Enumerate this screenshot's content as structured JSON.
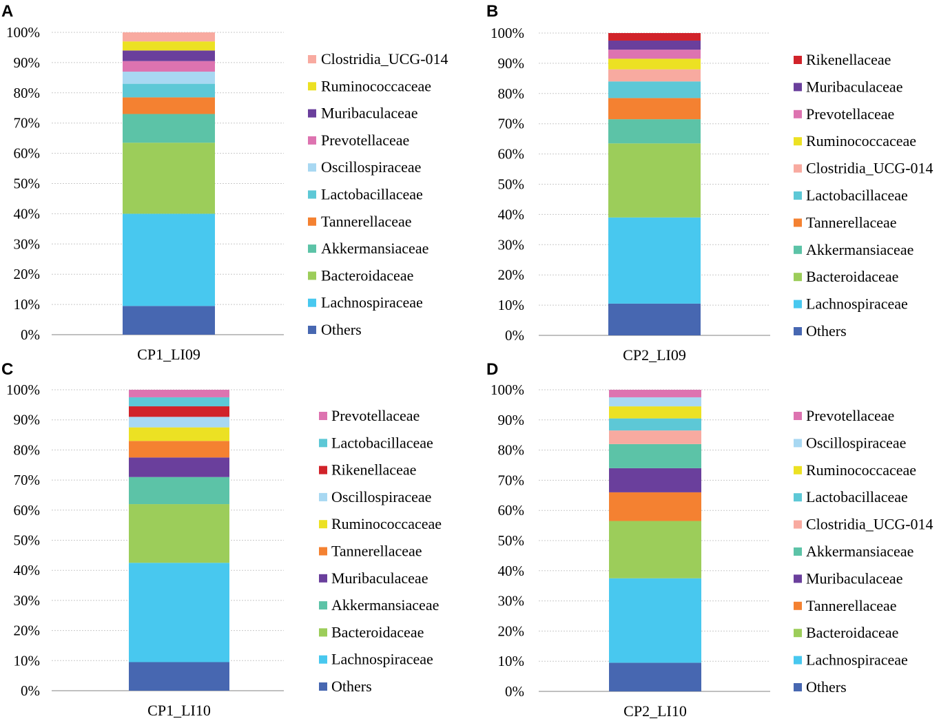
{
  "colors": {
    "Others": "#4767b1",
    "Lachnospiraceae": "#48c8ef",
    "Bacteroidaceae": "#9ccd5a",
    "Akkermansiaceae": "#5cc3a7",
    "Tannerellaceae": "#f48131",
    "Lactobacillaceae": "#5dc8d6",
    "Oscillospiraceae": "#a8d8f2",
    "Prevotellaceae": "#dd73b0",
    "Muribaculaceae": "#6a3f9c",
    "Ruminococcaceae": "#ece123",
    "Clostridia_UCG-014": "#f8aaa0",
    "Rikenellaceae": "#d1232a"
  },
  "chart_data": [
    {
      "panel": "A",
      "type": "bar",
      "stacked": true,
      "categories": [
        "CP1_LI09"
      ],
      "yticks": [
        "0%",
        "10%",
        "20%",
        "30%",
        "40%",
        "50%",
        "60%",
        "70%",
        "80%",
        "90%",
        "100%"
      ],
      "ylim": [
        0,
        100
      ],
      "series": [
        {
          "name": "Others",
          "values": [
            9.5
          ]
        },
        {
          "name": "Lachnospiraceae",
          "values": [
            30.5
          ]
        },
        {
          "name": "Bacteroidaceae",
          "values": [
            23.5
          ]
        },
        {
          "name": "Akkermansiaceae",
          "values": [
            9.5
          ]
        },
        {
          "name": "Tannerellaceae",
          "values": [
            5.5
          ]
        },
        {
          "name": "Lactobacillaceae",
          "values": [
            4.5
          ]
        },
        {
          "name": "Oscillospiraceae",
          "values": [
            4
          ]
        },
        {
          "name": "Prevotellaceae",
          "values": [
            3.5
          ]
        },
        {
          "name": "Muribaculaceae",
          "values": [
            3.5
          ]
        },
        {
          "name": "Ruminococcaceae",
          "values": [
            3
          ]
        },
        {
          "name": "Clostridia_UCG-014",
          "values": [
            3
          ]
        }
      ],
      "legend": [
        "Clostridia_UCG-014",
        "Ruminococcaceae",
        "Muribaculaceae",
        "Prevotellaceae",
        "Oscillospiraceae",
        "Lactobacillaceae",
        "Tannerellaceae",
        "Akkermansiaceae",
        "Bacteroidaceae",
        "Lachnospiraceae",
        "Others"
      ]
    },
    {
      "panel": "B",
      "type": "bar",
      "stacked": true,
      "categories": [
        "CP2_LI09"
      ],
      "yticks": [
        "0%",
        "10%",
        "20%",
        "30%",
        "40%",
        "50%",
        "60%",
        "70%",
        "80%",
        "90%",
        "100%"
      ],
      "ylim": [
        0,
        100
      ],
      "series": [
        {
          "name": "Others",
          "values": [
            10.5
          ]
        },
        {
          "name": "Lachnospiraceae",
          "values": [
            28.5
          ]
        },
        {
          "name": "Bacteroidaceae",
          "values": [
            24.5
          ]
        },
        {
          "name": "Akkermansiaceae",
          "values": [
            8
          ]
        },
        {
          "name": "Tannerellaceae",
          "values": [
            7
          ]
        },
        {
          "name": "Lactobacillaceae",
          "values": [
            5.5
          ]
        },
        {
          "name": "Clostridia_UCG-014",
          "values": [
            4
          ]
        },
        {
          "name": "Ruminococcaceae",
          "values": [
            3.5
          ]
        },
        {
          "name": "Prevotellaceae",
          "values": [
            3
          ]
        },
        {
          "name": "Muribaculaceae",
          "values": [
            3
          ]
        },
        {
          "name": "Rikenellaceae",
          "values": [
            2.5
          ]
        }
      ],
      "legend": [
        "Rikenellaceae",
        "Muribaculaceae",
        "Prevotellaceae",
        "Ruminococcaceae",
        "Clostridia_UCG-014",
        "Lactobacillaceae",
        "Tannerellaceae",
        "Akkermansiaceae",
        "Bacteroidaceae",
        "Lachnospiraceae",
        "Others"
      ]
    },
    {
      "panel": "C",
      "type": "bar",
      "stacked": true,
      "categories": [
        "CP1_LI10"
      ],
      "yticks": [
        "0%",
        "10%",
        "20%",
        "30%",
        "40%",
        "50%",
        "60%",
        "70%",
        "80%",
        "90%",
        "100%"
      ],
      "ylim": [
        0,
        100
      ],
      "series": [
        {
          "name": "Others",
          "values": [
            9.5
          ]
        },
        {
          "name": "Lachnospiraceae",
          "values": [
            33
          ]
        },
        {
          "name": "Bacteroidaceae",
          "values": [
            19.5
          ]
        },
        {
          "name": "Akkermansiaceae",
          "values": [
            9
          ]
        },
        {
          "name": "Muribaculaceae",
          "values": [
            6.5
          ]
        },
        {
          "name": "Tannerellaceae",
          "values": [
            5.5
          ]
        },
        {
          "name": "Ruminococcaceae",
          "values": [
            4.5
          ]
        },
        {
          "name": "Oscillospiraceae",
          "values": [
            3.5
          ]
        },
        {
          "name": "Rikenellaceae",
          "values": [
            3.5
          ]
        },
        {
          "name": "Lactobacillaceae",
          "values": [
            3
          ]
        },
        {
          "name": "Prevotellaceae",
          "values": [
            2.5
          ]
        }
      ],
      "legend": [
        "Prevotellaceae",
        "Lactobacillaceae",
        "Rikenellaceae",
        "Oscillospiraceae",
        "Ruminococcaceae",
        "Tannerellaceae",
        "Muribaculaceae",
        "Akkermansiaceae",
        "Bacteroidaceae",
        "Lachnospiraceae",
        "Others"
      ]
    },
    {
      "panel": "D",
      "type": "bar",
      "stacked": true,
      "categories": [
        "CP2_LI10"
      ],
      "yticks": [
        "0%",
        "10%",
        "20%",
        "30%",
        "40%",
        "50%",
        "60%",
        "70%",
        "80%",
        "90%",
        "100%"
      ],
      "ylim": [
        0,
        100
      ],
      "series": [
        {
          "name": "Others",
          "values": [
            9.5
          ]
        },
        {
          "name": "Lachnospiraceae",
          "values": [
            28
          ]
        },
        {
          "name": "Bacteroidaceae",
          "values": [
            19
          ]
        },
        {
          "name": "Tannerellaceae",
          "values": [
            9.5
          ]
        },
        {
          "name": "Muribaculaceae",
          "values": [
            8
          ]
        },
        {
          "name": "Akkermansiaceae",
          "values": [
            8
          ]
        },
        {
          "name": "Clostridia_UCG-014",
          "values": [
            4.5
          ]
        },
        {
          "name": "Lactobacillaceae",
          "values": [
            4
          ]
        },
        {
          "name": "Ruminococcaceae",
          "values": [
            4
          ]
        },
        {
          "name": "Oscillospiraceae",
          "values": [
            3
          ]
        },
        {
          "name": "Prevotellaceae",
          "values": [
            2.5
          ]
        }
      ],
      "legend": [
        "Prevotellaceae",
        "Oscillospiraceae",
        "Ruminococcaceae",
        "Lactobacillaceae",
        "Clostridia_UCG-014",
        "Akkermansiaceae",
        "Muribaculaceae",
        "Tannerellaceae",
        "Bacteroidaceae",
        "Lachnospiraceae",
        "Others"
      ]
    }
  ]
}
